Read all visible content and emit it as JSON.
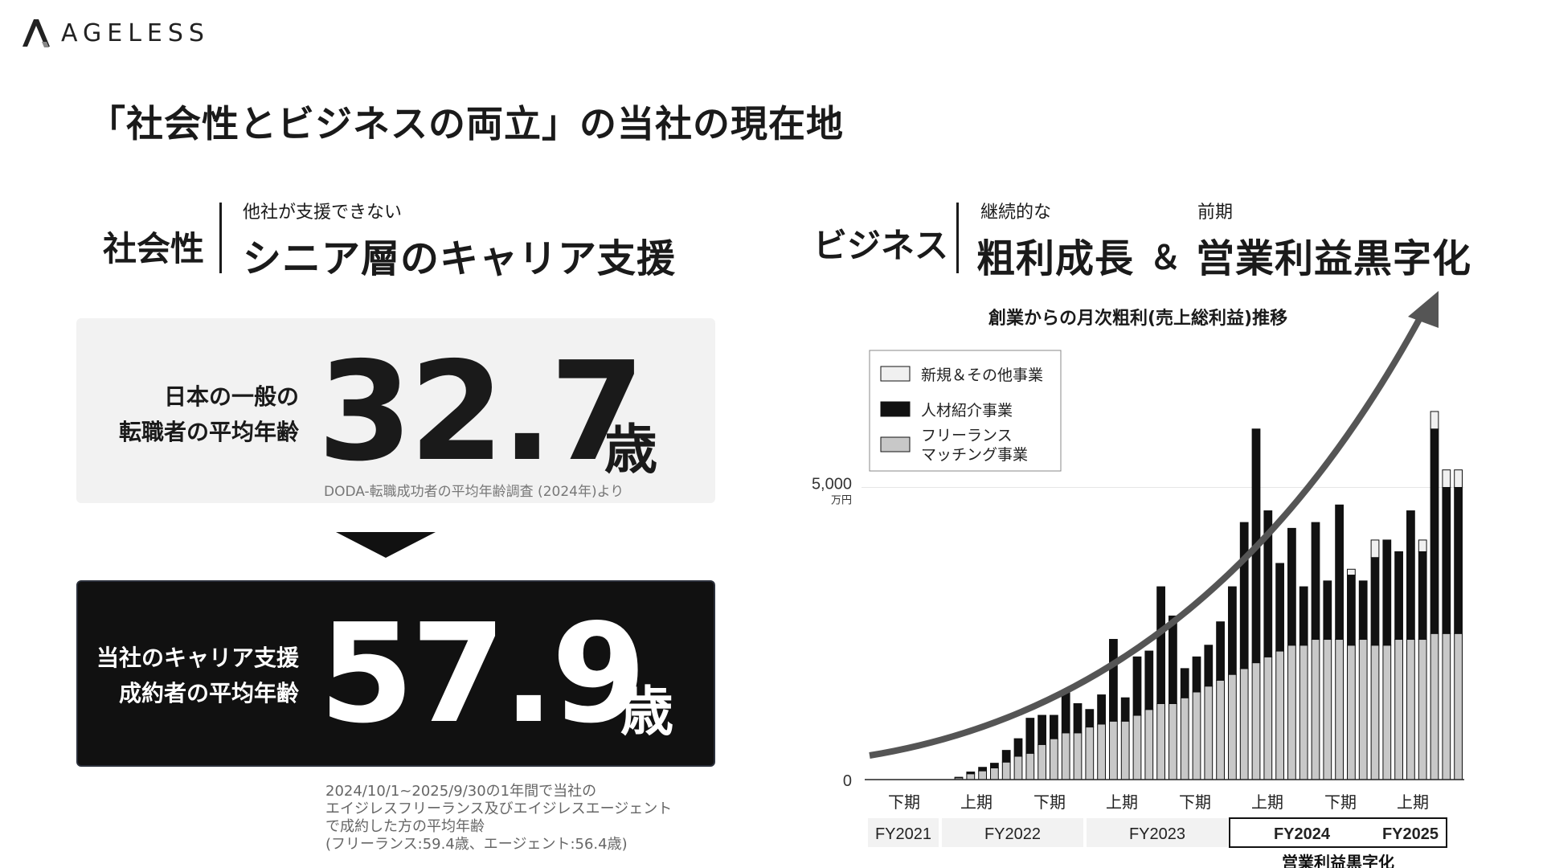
{
  "logo": {
    "text": "AGELESS"
  },
  "page_title": "「社会性とビジネスの両立」の当社の現在地",
  "social": {
    "label": "社会性",
    "small": "他社が支援できない",
    "big": "シニア層のキャリア支援"
  },
  "business": {
    "label": "ビジネス",
    "small1": "継続的な",
    "big1": "粗利成長",
    "amp": "＆",
    "small2": "前期",
    "big2": "営業利益黒字化"
  },
  "gray_box": {
    "label_line1": "日本の一般の",
    "label_line2": "転職者の平均年齢",
    "value": "32.7",
    "unit": "歳",
    "source": "DODA-転職成功者の平均年齢調査 (2024年)より"
  },
  "black_box": {
    "label_line1": "当社のキャリア支援",
    "label_line2": "成約者の平均年齢",
    "value": "57.9",
    "unit": "歳"
  },
  "note": {
    "line1": "2024/10/1~2025/9/30の1年間で当社の",
    "line2": "エイジレスフリーランス及びエイジレスエージェント",
    "line3": "で成約した方の平均年齢",
    "line4": "(フリーランス:59.4歳、エージェント:56.4歳)"
  },
  "chart_data": {
    "type": "bar",
    "stacked": true,
    "title": "創業からの月次粗利(売上総利益)推移",
    "y_tick_labels": [
      "0",
      "5,000"
    ],
    "y_unit": "万円",
    "ylim": [
      0,
      7400
    ],
    "legend_placement": "top-left",
    "half_labels": [
      "下期",
      "上期",
      "下期",
      "上期",
      "下期",
      "上期",
      "下期",
      "上期"
    ],
    "fy_labels": [
      "FY2021",
      "FY2022",
      "FY2023",
      "FY2024",
      "FY2025"
    ],
    "highlight_label": "営業利益黒字化",
    "series": [
      {
        "name": "フリーランス\nマッチング事業",
        "legend_line1": "フリーランス",
        "legend_line2": "マッチング事業",
        "color": "#c8c8c8",
        "values": [
          0,
          0,
          0,
          0,
          0,
          0,
          0,
          30,
          100,
          150,
          200,
          300,
          400,
          450,
          600,
          700,
          800,
          800,
          900,
          950,
          1000,
          1000,
          1100,
          1200,
          1300,
          1300,
          1400,
          1500,
          1600,
          1700,
          1800,
          1900,
          2000,
          2100,
          2200,
          2300,
          2300,
          2400,
          2400,
          2400,
          2300,
          2400,
          2300,
          2300,
          2400,
          2400,
          2400,
          2500,
          2500,
          2500
        ]
      },
      {
        "name": "人材紹介事業",
        "color": "#111111",
        "values": [
          0,
          0,
          0,
          0,
          0,
          0,
          0,
          10,
          30,
          60,
          80,
          200,
          300,
          600,
          500,
          400,
          700,
          500,
          300,
          500,
          1400,
          400,
          1000,
          1000,
          2000,
          1500,
          500,
          600,
          700,
          1000,
          1500,
          2500,
          4000,
          2500,
          1500,
          2000,
          1000,
          2000,
          1000,
          2300,
          1200,
          1000,
          1500,
          1800,
          1500,
          2200,
          1500,
          3500,
          2500,
          2500
        ]
      },
      {
        "name": "新規＆その他事業",
        "color": "#f0f0f0",
        "values": [
          0,
          0,
          0,
          0,
          0,
          0,
          0,
          0,
          0,
          0,
          0,
          0,
          0,
          0,
          0,
          0,
          0,
          0,
          0,
          0,
          0,
          0,
          0,
          0,
          0,
          0,
          0,
          0,
          0,
          0,
          0,
          0,
          0,
          0,
          0,
          0,
          0,
          0,
          0,
          0,
          100,
          0,
          300,
          0,
          0,
          0,
          200,
          300,
          300,
          300
        ]
      }
    ]
  }
}
